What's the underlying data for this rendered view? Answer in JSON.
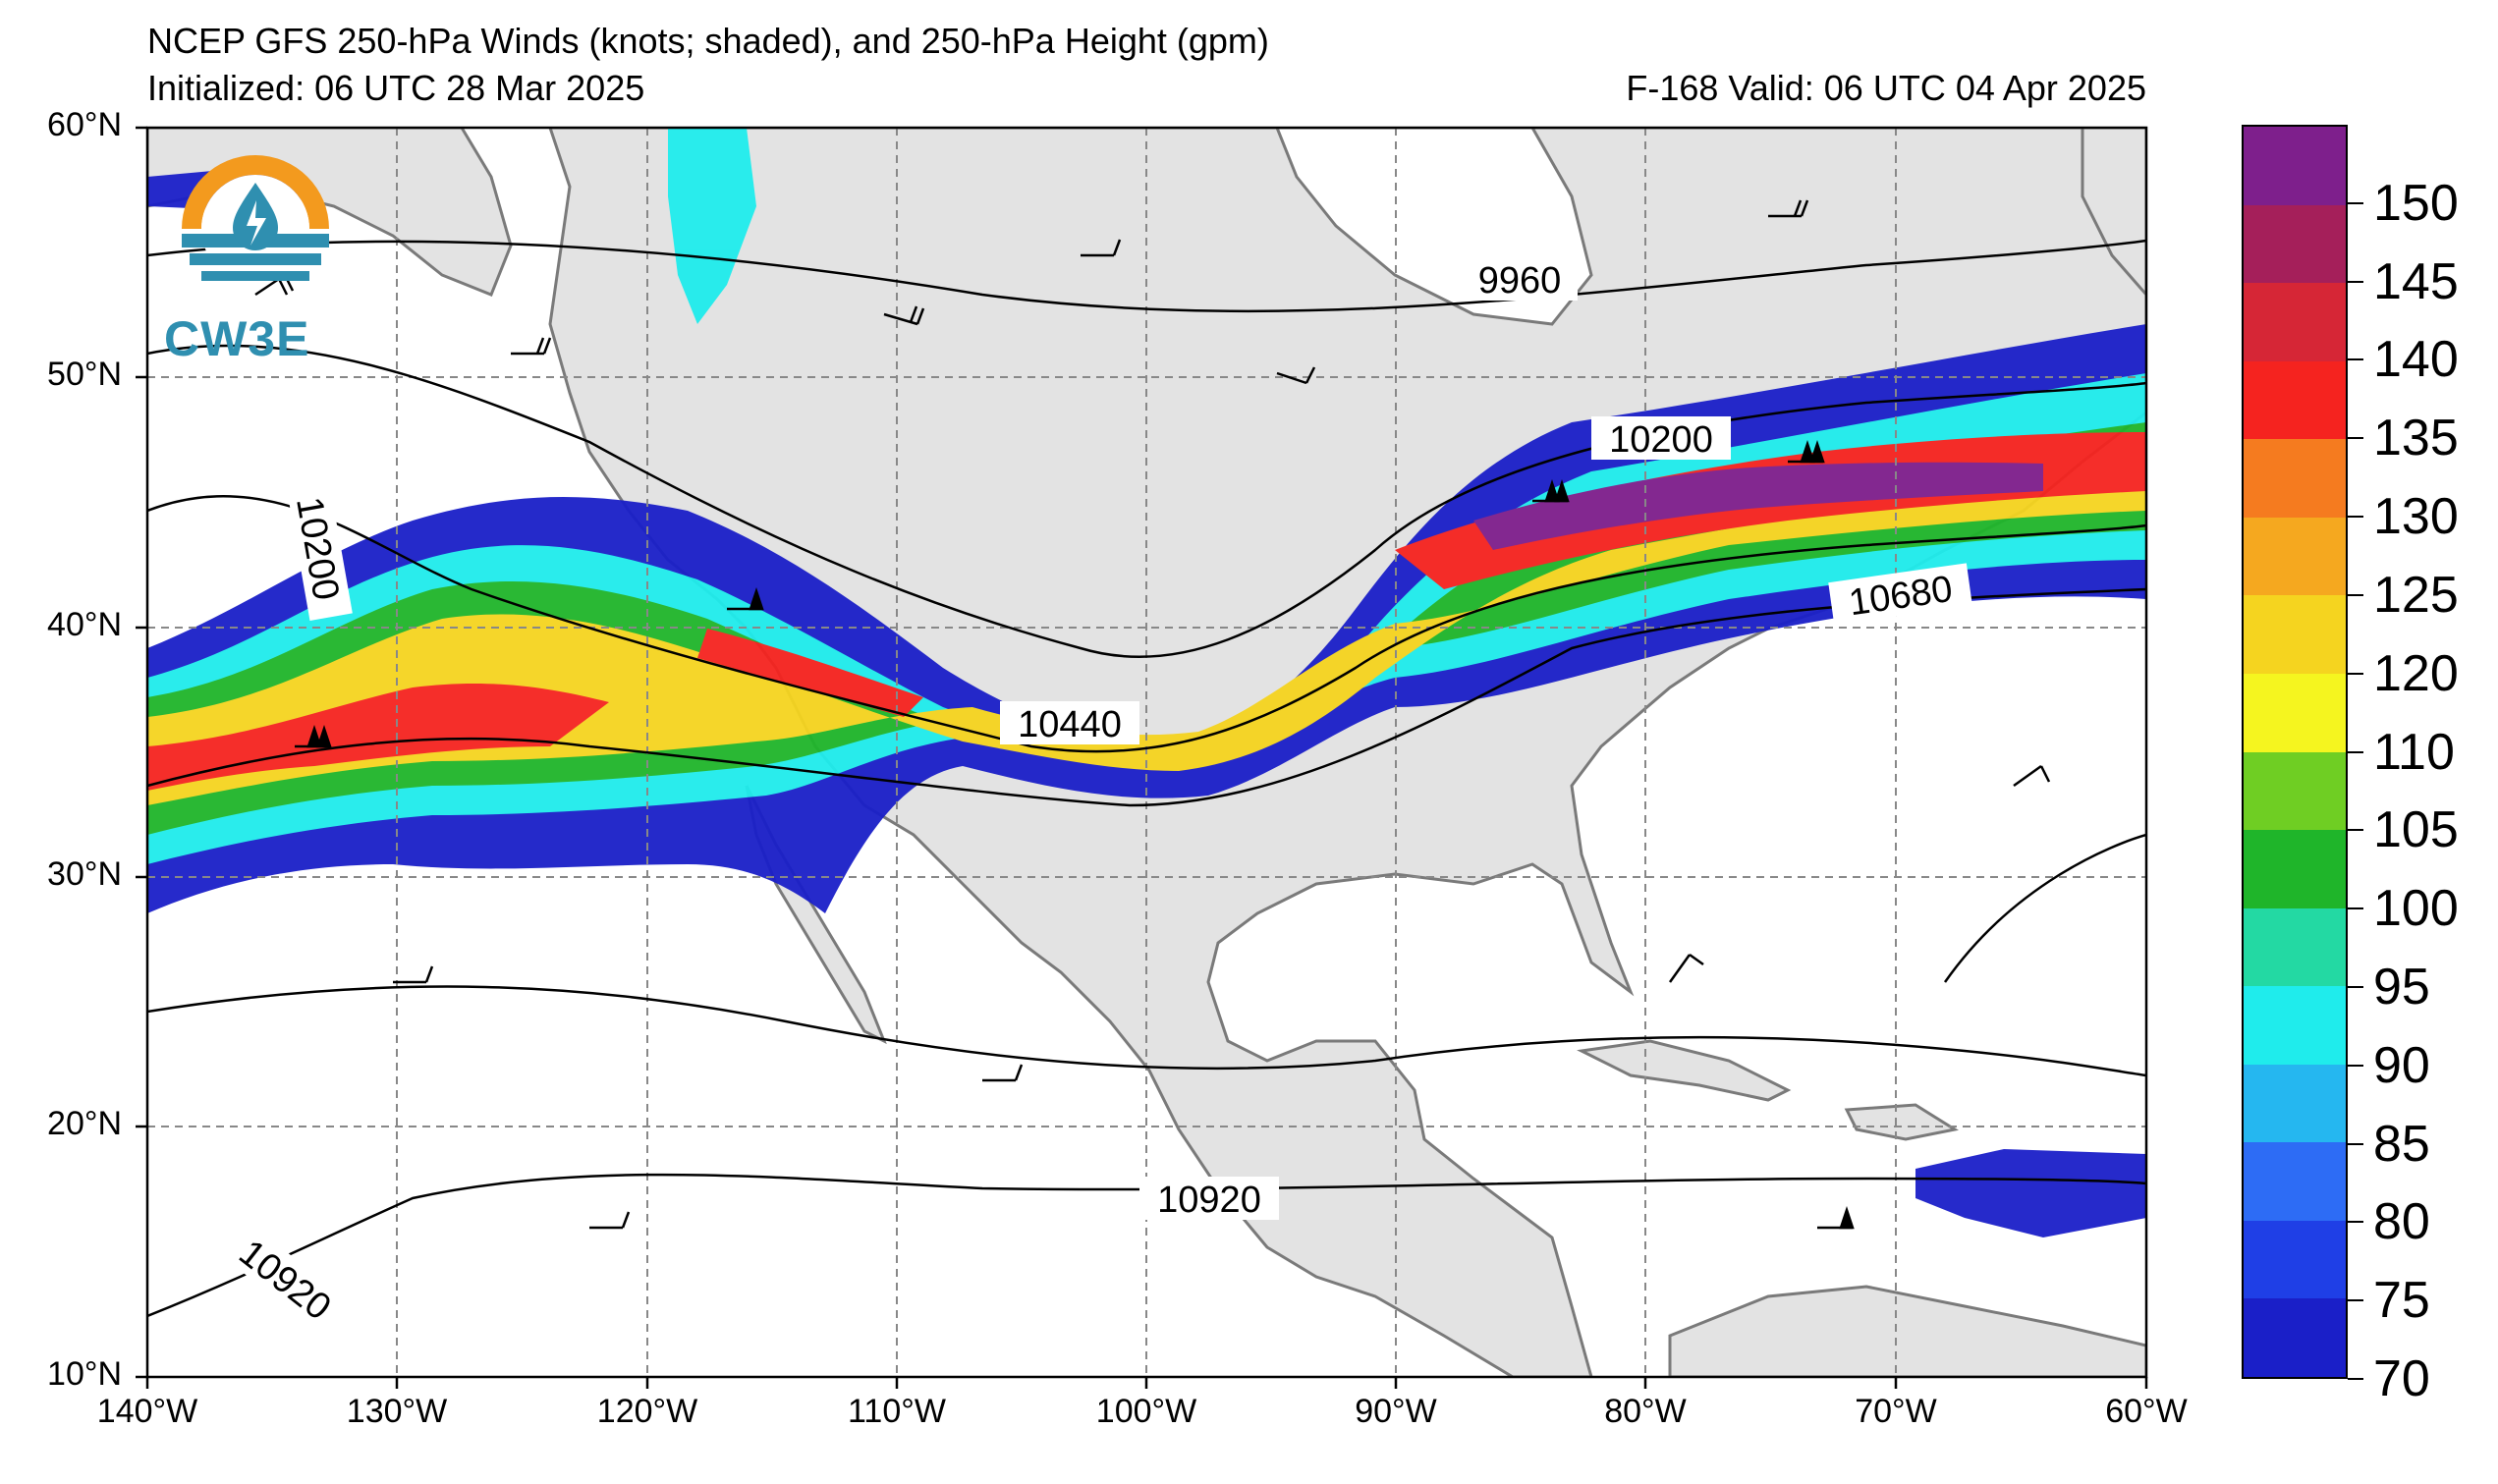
{
  "title": {
    "line1": "NCEP GFS 250-hPa Winds (knots; shaded), and 250-hPa Height (gpm)",
    "line2": "Initialized: 06 UTC 28 Mar 2025",
    "valid": "F-168  Valid: 06 UTC 04 Apr 2025"
  },
  "logo": {
    "text": "CW3E",
    "icon": "cw3e-logo-icon"
  },
  "axes": {
    "lat_labels": [
      "60°N",
      "50°N",
      "40°N",
      "30°N",
      "20°N",
      "10°N"
    ],
    "lon_labels": [
      "140°W",
      "130°W",
      "120°W",
      "110°W",
      "100°W",
      "90°W",
      "80°W",
      "70°W",
      "60°W"
    ]
  },
  "contour_labels": [
    {
      "text": "9960"
    },
    {
      "text": "10200"
    },
    {
      "text": "10200"
    },
    {
      "text": "10440"
    },
    {
      "text": "10680"
    },
    {
      "text": "10920"
    },
    {
      "text": "10920"
    }
  ],
  "colorbar": {
    "labels": [
      "70",
      "75",
      "80",
      "85",
      "90",
      "95",
      "100",
      "105",
      "110",
      "120",
      "125",
      "130",
      "135",
      "140",
      "145",
      "150"
    ],
    "colors": [
      "#1a1fc8",
      "#1f3fe6",
      "#2d6cf5",
      "#25b7f0",
      "#1fecec",
      "#23d9a3",
      "#1fb52a",
      "#6fce23",
      "#f5f51f",
      "#f5d41f",
      "#f5a81f",
      "#f57b1f",
      "#f5231f",
      "#d62636",
      "#a51f5a",
      "#7e1f8c"
    ]
  },
  "colors": {
    "land": "#e3e3e3",
    "ocean": "#ffffff",
    "coast": "#7a7a7a",
    "contour": "#000000"
  }
}
